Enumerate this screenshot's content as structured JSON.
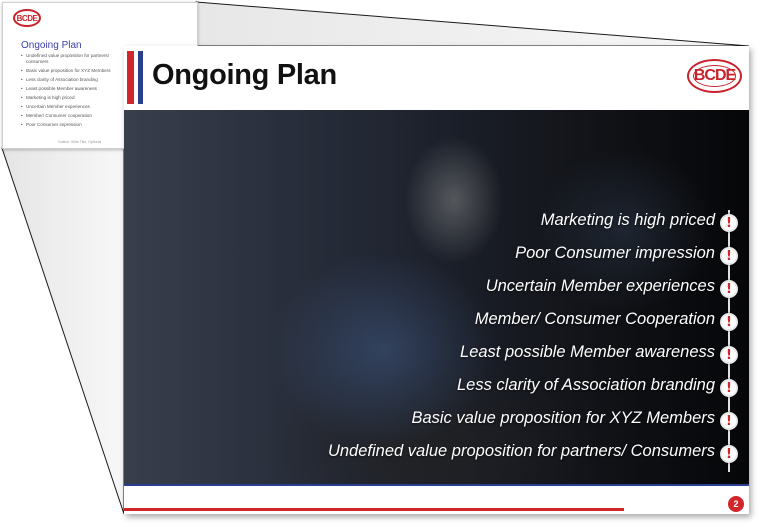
{
  "thumbnail": {
    "logo_text": "BCDE",
    "title": "Ongoing Plan",
    "bullets": [
      "Undefined value proposition for partners/ consumers",
      "Basic value proposition for XYZ Members",
      "Less clarity of Association branding",
      "Least possible Member awareness",
      "Marketing is high priced",
      "Uncertain Member experiences",
      "Member/ Consumer cooperation",
      "Poor Consumer impression"
    ],
    "footer": "Outline: Slide Title, Optional"
  },
  "slide": {
    "title": "Ongoing Plan",
    "logo_text": "BCDE",
    "marker_icon": "exclamation-icon",
    "marker_symbol": "!",
    "items": [
      "Marketing is high priced",
      "Poor Consumer impression",
      "Uncertain Member experiences",
      "Member/ Consumer Cooperation",
      "Least possible Member awareness",
      "Less clarity of Association branding",
      "Basic value proposition for XYZ Members",
      "Undefined value proposition for partners/ Consumers"
    ],
    "page_number": "2",
    "colors": {
      "accent_red": "#d0262c",
      "accent_blue": "#2a3f8f"
    }
  }
}
